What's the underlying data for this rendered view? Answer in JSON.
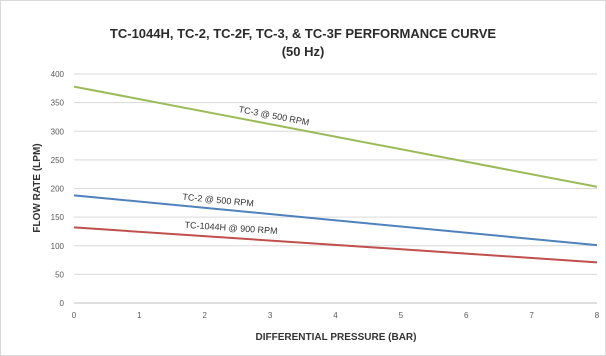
{
  "chart_data": {
    "type": "line",
    "title_line1": "TC-1044H, TC-2, TC-2F, TC-3, & TC-3F PERFORMANCE CURVE",
    "title_line2": "(50 Hz)",
    "xlabel": "DIFFERENTIAL PRESSURE (BAR)",
    "ylabel": "FLOW RATE (LPM)",
    "xlim": [
      0,
      8
    ],
    "ylim": [
      0,
      400
    ],
    "x_ticks": [
      "0",
      "1",
      "2",
      "3",
      "4",
      "5",
      "6",
      "7",
      "8"
    ],
    "y_ticks": [
      "0",
      "50",
      "100",
      "150",
      "200",
      "250",
      "300",
      "350",
      "400"
    ],
    "grid": true,
    "series": [
      {
        "name": "TC-3 @ 500 RPM",
        "color": "#9bbb59",
        "x": [
          0,
          8
        ],
        "y": [
          378,
          203
        ]
      },
      {
        "name": "TC-2 @ 500 RPM",
        "color": "#4f81bd",
        "x": [
          0,
          8
        ],
        "y": [
          188,
          101
        ]
      },
      {
        "name": "TC-1044H @ 900 RPM",
        "color": "#c0504d",
        "x": [
          0,
          8
        ],
        "y": [
          132,
          71
        ]
      }
    ]
  }
}
